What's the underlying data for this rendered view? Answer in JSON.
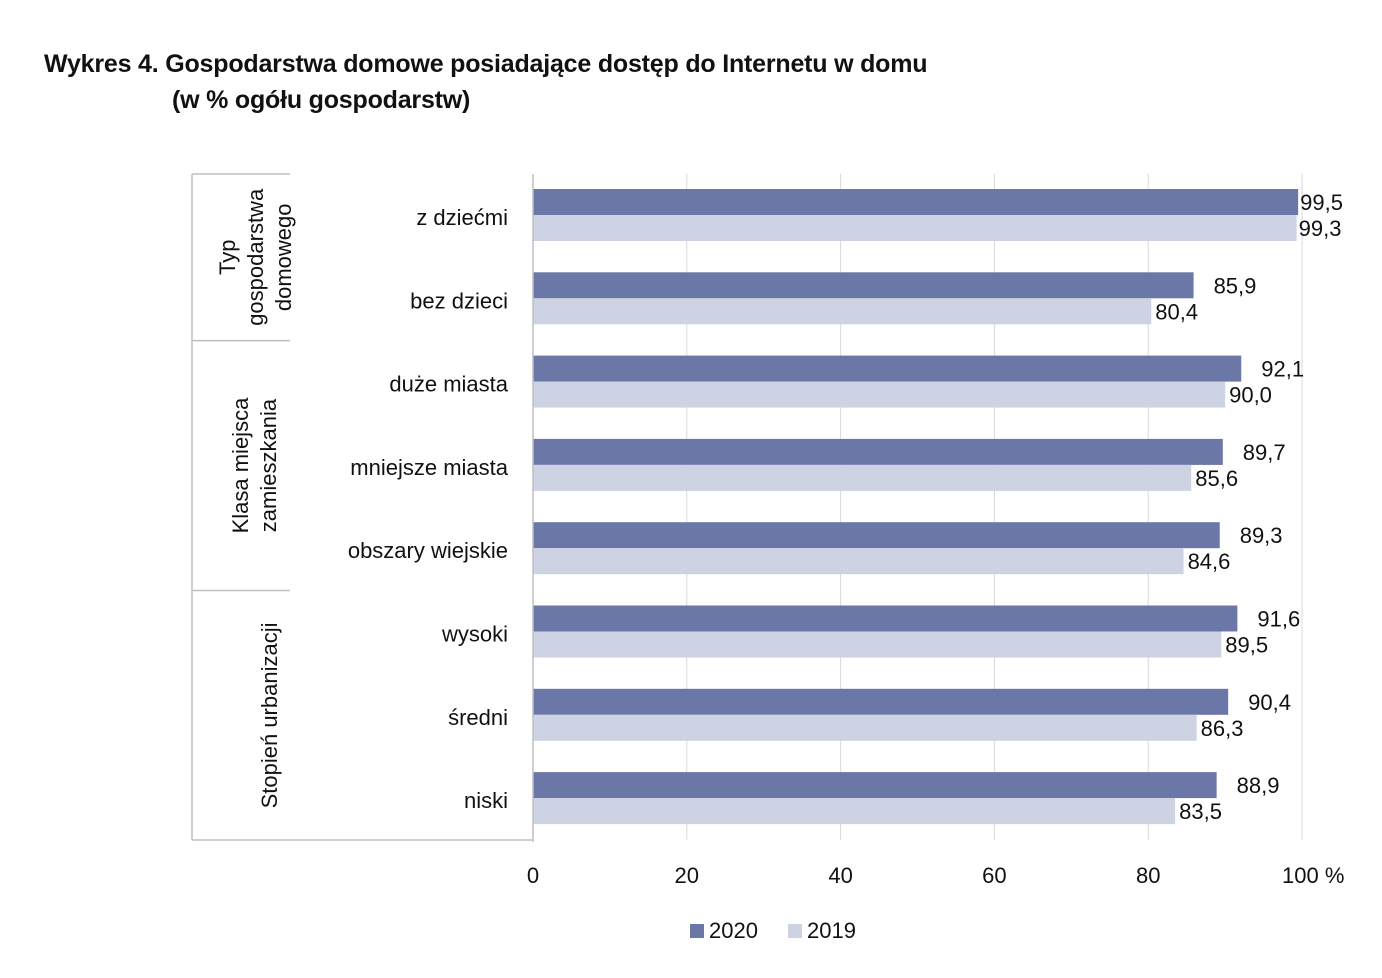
{
  "title": {
    "line1": "Wykres 4. Gospodarstwa domowe posiadające dostęp do Internetu w domu",
    "line2": "(w % ogółu gospodarstw)"
  },
  "chart_data": {
    "type": "bar",
    "orientation": "horizontal",
    "title": "Wykres 4. Gospodarstwa domowe posiadające dostęp do Internetu w domu (w % ogółu gospodarstw)",
    "groups": [
      {
        "label": [
          "Typ",
          "gospodarstwa",
          "domowego"
        ],
        "categories": [
          "z dziećmi",
          "bez dzieci"
        ]
      },
      {
        "label": [
          "Klasa miejsca",
          "zamieszkania"
        ],
        "categories": [
          "duże miasta",
          "mniejsze miasta",
          "obszary wiejskie"
        ]
      },
      {
        "label": [
          "Stopień urbanizacji"
        ],
        "categories": [
          "wysoki",
          "średni",
          "niski"
        ]
      }
    ],
    "categories": [
      "z dziećmi",
      "bez dzieci",
      "duże miasta",
      "mniejsze miasta",
      "obszary wiejskie",
      "wysoki",
      "średni",
      "niski"
    ],
    "series": [
      {
        "name": "2020",
        "color": "#6b77a7",
        "values": [
          99.5,
          85.9,
          92.1,
          89.7,
          89.3,
          91.6,
          90.4,
          88.9
        ],
        "labels": [
          "99,5",
          "85,9",
          "92,1",
          "89,7",
          "89,3",
          "91,6",
          "90,4",
          "88,9"
        ]
      },
      {
        "name": "2019",
        "color": "#ced3e4",
        "values": [
          99.3,
          80.4,
          90.0,
          85.6,
          84.6,
          89.5,
          86.3,
          83.5
        ],
        "labels": [
          "99,3",
          "80,4",
          "90,0",
          "85,6",
          "84,6",
          "89,5",
          "86,3",
          "83,5"
        ]
      }
    ],
    "xlim": [
      0,
      100
    ],
    "xticks": [
      0,
      20,
      40,
      60,
      80,
      100
    ],
    "xtick_labels": [
      "0",
      "20",
      "40",
      "60",
      "80",
      "100 %"
    ],
    "grid": true,
    "legend": "bottom-center",
    "gridline_color": "#d9d9d9",
    "axis_color": "#bfbfbf"
  }
}
